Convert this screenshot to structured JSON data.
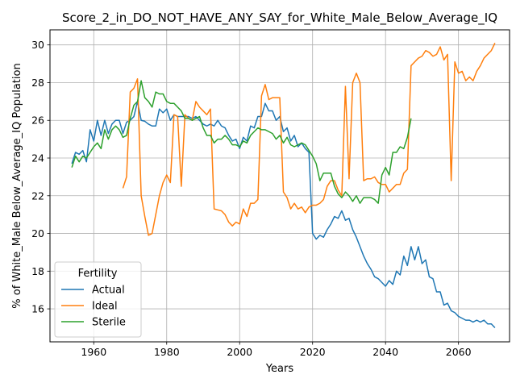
{
  "chart_data": {
    "type": "line",
    "title": "Score_2_in_DO_NOT_HAVE_ANY_SAY_for_White_Male_Below_Average_IQ",
    "xlabel": "Years",
    "ylabel": "% of White_Male Below_Average_IQ Population",
    "xlim": [
      1948,
      2074
    ],
    "ylim": [
      14.25,
      30.8
    ],
    "xticks": [
      1960,
      1980,
      2000,
      2020,
      2040,
      2060
    ],
    "yticks": [
      16,
      18,
      20,
      22,
      24,
      26,
      28,
      30
    ],
    "grid": true,
    "legend": {
      "title": "Fertility",
      "placement": "lower-left",
      "entries": [
        "Actual",
        "Ideal",
        "Sterile"
      ]
    },
    "series": [
      {
        "name": "Actual",
        "color": "#1f77b4",
        "x": [
          1954,
          1955,
          1956,
          1957,
          1958,
          1959,
          1960,
          1961,
          1962,
          1963,
          1964,
          1965,
          1966,
          1967,
          1968,
          1969,
          1970,
          1971,
          1972,
          1973,
          1974,
          1975,
          1976,
          1977,
          1978,
          1979,
          1980,
          1981,
          1982,
          1983,
          1984,
          1985,
          1986,
          1987,
          1988,
          1989,
          1990,
          1991,
          1992,
          1993,
          1994,
          1995,
          1996,
          1997,
          1998,
          1999,
          2000,
          2001,
          2002,
          2003,
          2004,
          2005,
          2006,
          2007,
          2008,
          2009,
          2010,
          2011,
          2012,
          2013,
          2014,
          2015,
          2016,
          2017,
          2018,
          2019,
          2020,
          2021,
          2022,
          2023,
          2024,
          2025,
          2026,
          2027,
          2028,
          2029,
          2030,
          2031,
          2032,
          2033,
          2034,
          2035,
          2036,
          2037,
          2038,
          2039,
          2040,
          2041,
          2042,
          2043,
          2044,
          2045,
          2046,
          2047,
          2048,
          2049,
          2050,
          2051,
          2052,
          2053,
          2054,
          2055,
          2056,
          2057,
          2058,
          2059,
          2060,
          2061,
          2062,
          2063,
          2064,
          2065,
          2066,
          2067,
          2068,
          2069,
          2070
        ],
        "y": [
          23.7,
          24.3,
          24.2,
          24.4,
          23.8,
          25.5,
          24.9,
          26.0,
          25.2,
          26.0,
          25.3,
          25.8,
          26.0,
          26.0,
          25.3,
          25.9,
          26.0,
          26.2,
          27.0,
          26.0,
          25.95,
          25.8,
          25.7,
          25.7,
          26.6,
          26.4,
          26.6,
          26.0,
          26.3,
          26.2,
          26.2,
          26.2,
          26.2,
          26.1,
          26.2,
          26.0,
          25.8,
          25.7,
          25.8,
          25.7,
          26.0,
          25.7,
          25.6,
          25.2,
          24.9,
          25.0,
          24.5,
          25.1,
          24.9,
          25.7,
          25.6,
          26.2,
          26.2,
          26.9,
          26.5,
          26.5,
          26.0,
          26.2,
          25.4,
          25.6,
          24.9,
          25.2,
          24.6,
          24.8,
          24.5,
          24.3,
          20.0,
          19.7,
          19.9,
          19.8,
          20.2,
          20.5,
          20.9,
          20.8,
          21.2,
          20.7,
          20.8,
          20.2,
          19.8,
          19.3,
          18.8,
          18.4,
          18.1,
          17.7,
          17.6,
          17.4,
          17.2,
          17.5,
          17.3,
          18.0,
          17.8,
          18.8,
          18.3,
          19.3,
          18.6,
          19.3,
          18.4,
          18.6,
          17.7,
          17.6,
          16.9,
          16.9,
          16.2,
          16.3,
          15.9,
          15.8,
          15.6,
          15.5,
          15.4,
          15.4,
          15.3,
          15.4,
          15.3,
          15.4,
          15.2,
          15.2,
          15.0
        ]
      },
      {
        "name": "Ideal",
        "color": "#ff7f0e",
        "x": [
          1968,
          1969,
          1970,
          1971,
          1972,
          1973,
          1974,
          1975,
          1976,
          1977,
          1978,
          1979,
          1980,
          1981,
          1982,
          1983,
          1984,
          1985,
          1986,
          1987,
          1988,
          1989,
          1990,
          1991,
          1992,
          1993,
          1994,
          1995,
          1996,
          1997,
          1998,
          1999,
          2000,
          2001,
          2002,
          2003,
          2004,
          2005,
          2006,
          2007,
          2008,
          2009,
          2010,
          2011,
          2012,
          2013,
          2014,
          2015,
          2016,
          2017,
          2018,
          2019,
          2020,
          2021,
          2022,
          2023,
          2024,
          2025,
          2026,
          2027,
          2028,
          2029,
          2030,
          2031,
          2032,
          2033,
          2034,
          2035,
          2036,
          2037,
          2038,
          2039,
          2040,
          2041,
          2042,
          2043,
          2044,
          2045,
          2046,
          2047,
          2048,
          2049,
          2050,
          2051,
          2052,
          2053,
          2054,
          2055,
          2056,
          2057,
          2058,
          2059,
          2060,
          2061,
          2062,
          2063,
          2064,
          2065,
          2066,
          2067,
          2068,
          2069,
          2070
        ],
        "y": [
          22.4,
          23.0,
          27.5,
          27.7,
          28.2,
          22.0,
          20.9,
          19.9,
          20.0,
          21.0,
          22.0,
          22.7,
          23.1,
          22.7,
          26.3,
          26.2,
          22.5,
          26.3,
          26.1,
          26.0,
          27.0,
          26.7,
          26.5,
          26.3,
          26.6,
          21.3,
          21.25,
          21.2,
          21.0,
          20.6,
          20.4,
          20.6,
          20.5,
          21.3,
          20.9,
          21.6,
          21.6,
          21.8,
          27.3,
          27.9,
          27.1,
          27.2,
          27.2,
          27.2,
          22.2,
          21.9,
          21.3,
          21.6,
          21.3,
          21.4,
          21.1,
          21.4,
          21.5,
          21.5,
          21.6,
          21.8,
          22.5,
          22.8,
          22.8,
          22.3,
          22.0,
          27.8,
          22.9,
          28.0,
          28.5,
          28.0,
          22.8,
          22.9,
          22.9,
          23.0,
          22.7,
          22.6,
          22.6,
          22.2,
          22.4,
          22.6,
          22.6,
          23.2,
          23.4,
          28.9,
          29.1,
          29.3,
          29.4,
          29.7,
          29.6,
          29.4,
          29.5,
          29.9,
          29.2,
          29.5,
          22.8,
          29.1,
          28.5,
          28.6,
          28.1,
          28.3,
          28.1,
          28.6,
          28.9,
          29.3,
          29.5,
          29.7,
          30.1
        ]
      },
      {
        "name": "Sterile",
        "color": "#2ca02c",
        "x": [
          1954,
          1955,
          1956,
          1957,
          1958,
          1959,
          1960,
          1961,
          1962,
          1963,
          1964,
          1965,
          1966,
          1967,
          1968,
          1969,
          1970,
          1971,
          1972,
          1973,
          1974,
          1975,
          1976,
          1977,
          1978,
          1979,
          1980,
          1981,
          1982,
          1983,
          1984,
          1985,
          1986,
          1987,
          1988,
          1989,
          1990,
          1991,
          1992,
          1993,
          1994,
          1995,
          1996,
          1997,
          1998,
          1999,
          2000,
          2001,
          2002,
          2003,
          2004,
          2005,
          2006,
          2007,
          2008,
          2009,
          2010,
          2011,
          2012,
          2013,
          2014,
          2015,
          2016,
          2017,
          2018,
          2019,
          2020,
          2021,
          2022,
          2023,
          2024,
          2025,
          2026,
          2027,
          2028,
          2029,
          2030,
          2031,
          2032,
          2033,
          2034,
          2035,
          2036,
          2037,
          2038,
          2039,
          2040,
          2041,
          2042,
          2043,
          2044,
          2045,
          2046,
          2047
        ],
        "y": [
          23.5,
          24.1,
          23.8,
          24.1,
          24.0,
          24.3,
          24.6,
          24.8,
          24.5,
          25.5,
          25.0,
          25.5,
          25.7,
          25.5,
          25.1,
          25.2,
          26.1,
          26.8,
          27.0,
          28.1,
          27.2,
          27.0,
          26.7,
          27.5,
          27.4,
          27.4,
          27.0,
          26.9,
          26.9,
          26.7,
          26.5,
          26.1,
          26.1,
          26.0,
          26.1,
          26.2,
          25.6,
          25.2,
          25.2,
          24.8,
          25.0,
          25.0,
          25.2,
          25.0,
          24.7,
          24.7,
          24.6,
          24.9,
          24.8,
          25.2,
          25.4,
          25.6,
          25.5,
          25.5,
          25.4,
          25.3,
          25.0,
          25.2,
          24.8,
          25.1,
          24.7,
          24.6,
          24.7,
          24.8,
          24.7,
          24.4,
          24.1,
          23.7,
          22.8,
          23.2,
          23.2,
          23.2,
          22.5,
          22.1,
          21.9,
          22.2,
          22.0,
          21.7,
          22.0,
          21.6,
          21.9,
          21.9,
          21.9,
          21.8,
          21.6,
          23.1,
          23.5,
          23.1,
          24.3,
          24.3,
          24.6,
          24.5,
          25.1,
          26.1
        ]
      }
    ]
  }
}
